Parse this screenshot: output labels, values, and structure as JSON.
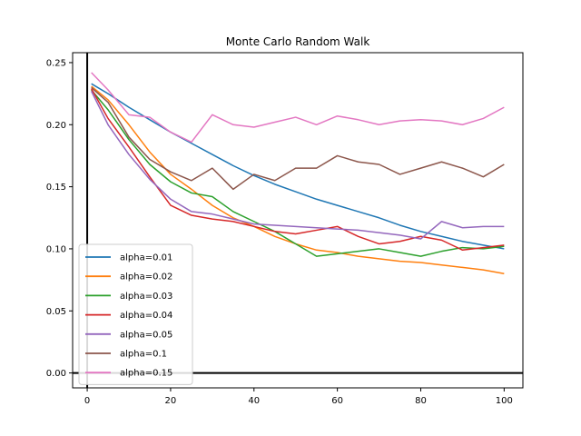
{
  "chart_data": {
    "type": "line",
    "title": "Monte Carlo Random Walk",
    "xlabel": "",
    "ylabel": "",
    "xlim": [
      -3.5,
      104.5
    ],
    "ylim": [
      -0.012,
      0.258
    ],
    "xticks": [
      0,
      20,
      40,
      60,
      80,
      100
    ],
    "xtick_labels": [
      "0",
      "20",
      "40",
      "60",
      "80",
      "100"
    ],
    "yticks": [
      0.0,
      0.05,
      0.1,
      0.15,
      0.2,
      0.25
    ],
    "ytick_labels": [
      "0.00",
      "0.05",
      "0.10",
      "0.15",
      "0.20",
      "0.25"
    ],
    "grid": false,
    "reference_lines": {
      "x": 0,
      "y": 0,
      "color": "#000000"
    },
    "legend_position": "lower-left",
    "series": [
      {
        "name": "alpha=0.01",
        "color": "#1f77b4",
        "x": [
          1,
          5,
          10,
          15,
          20,
          25,
          30,
          35,
          40,
          45,
          50,
          55,
          60,
          65,
          70,
          75,
          80,
          85,
          90,
          95,
          100
        ],
        "y": [
          0.233,
          0.225,
          0.214,
          0.204,
          0.194,
          0.185,
          0.176,
          0.167,
          0.159,
          0.152,
          0.146,
          0.14,
          0.135,
          0.13,
          0.125,
          0.119,
          0.114,
          0.11,
          0.106,
          0.103,
          0.1
        ]
      },
      {
        "name": "alpha=0.02",
        "color": "#ff7f0e",
        "x": [
          1,
          5,
          10,
          15,
          20,
          25,
          30,
          35,
          40,
          45,
          50,
          55,
          60,
          65,
          70,
          75,
          80,
          85,
          90,
          95,
          100
        ],
        "y": [
          0.231,
          0.22,
          0.2,
          0.178,
          0.16,
          0.148,
          0.135,
          0.125,
          0.118,
          0.11,
          0.104,
          0.099,
          0.097,
          0.094,
          0.092,
          0.09,
          0.089,
          0.087,
          0.085,
          0.083,
          0.08
        ]
      },
      {
        "name": "alpha=0.03",
        "color": "#2ca02c",
        "x": [
          1,
          5,
          10,
          15,
          20,
          25,
          30,
          35,
          40,
          45,
          50,
          55,
          60,
          65,
          70,
          75,
          80,
          85,
          90,
          95,
          100
        ],
        "y": [
          0.228,
          0.212,
          0.188,
          0.168,
          0.154,
          0.145,
          0.142,
          0.13,
          0.122,
          0.114,
          0.104,
          0.094,
          0.096,
          0.098,
          0.1,
          0.097,
          0.094,
          0.098,
          0.101,
          0.1,
          0.102
        ]
      },
      {
        "name": "alpha=0.04",
        "color": "#d62728",
        "x": [
          1,
          5,
          10,
          15,
          20,
          25,
          30,
          35,
          40,
          45,
          50,
          55,
          60,
          65,
          70,
          75,
          80,
          85,
          90,
          95,
          100
        ],
        "y": [
          0.229,
          0.205,
          0.182,
          0.158,
          0.135,
          0.127,
          0.124,
          0.122,
          0.118,
          0.114,
          0.112,
          0.115,
          0.118,
          0.11,
          0.104,
          0.106,
          0.11,
          0.107,
          0.099,
          0.101,
          0.103
        ]
      },
      {
        "name": "alpha=0.05",
        "color": "#9467bd",
        "x": [
          1,
          5,
          10,
          15,
          20,
          25,
          30,
          35,
          40,
          45,
          50,
          55,
          60,
          65,
          70,
          75,
          80,
          85,
          90,
          95,
          100
        ],
        "y": [
          0.227,
          0.2,
          0.176,
          0.156,
          0.14,
          0.13,
          0.128,
          0.124,
          0.12,
          0.119,
          0.118,
          0.117,
          0.116,
          0.115,
          0.113,
          0.111,
          0.108,
          0.122,
          0.117,
          0.118,
          0.118
        ]
      },
      {
        "name": "alpha=0.1",
        "color": "#8c564b",
        "x": [
          1,
          5,
          10,
          15,
          20,
          25,
          30,
          35,
          40,
          45,
          50,
          55,
          60,
          65,
          70,
          75,
          80,
          85,
          90,
          95,
          100
        ],
        "y": [
          0.23,
          0.218,
          0.19,
          0.172,
          0.162,
          0.155,
          0.165,
          0.148,
          0.16,
          0.155,
          0.165,
          0.165,
          0.175,
          0.17,
          0.168,
          0.16,
          0.165,
          0.17,
          0.165,
          0.158,
          0.168
        ]
      },
      {
        "name": "alpha=0.15",
        "color": "#e377c2",
        "x": [
          1,
          5,
          10,
          15,
          20,
          25,
          30,
          35,
          40,
          45,
          50,
          55,
          60,
          65,
          70,
          75,
          80,
          85,
          90,
          95,
          100
        ],
        "y": [
          0.242,
          0.228,
          0.208,
          0.206,
          0.194,
          0.186,
          0.208,
          0.2,
          0.198,
          0.202,
          0.206,
          0.2,
          0.207,
          0.204,
          0.2,
          0.203,
          0.204,
          0.203,
          0.2,
          0.205,
          0.214
        ]
      }
    ]
  }
}
